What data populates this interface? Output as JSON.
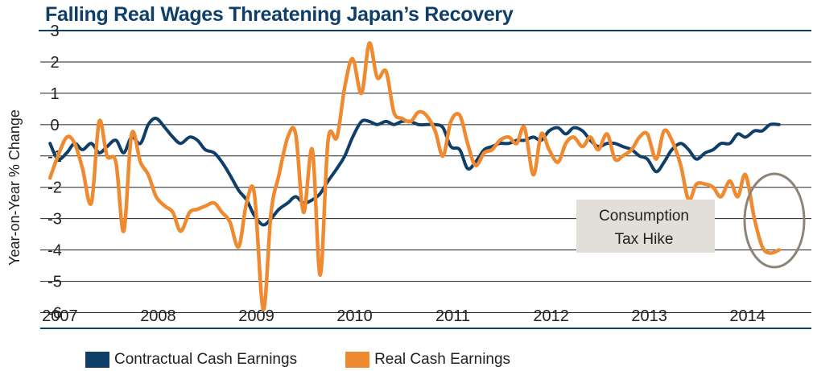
{
  "chart_data": {
    "type": "line",
    "title": "Falling Real Wages Threatening Japan’s Recovery",
    "xlabel": "",
    "ylabel": "Year-on-Year % Change",
    "ylim": [
      -6.5,
      3
    ],
    "yticks": [
      3,
      2,
      1,
      0,
      -1,
      -2,
      -3,
      -4,
      -5,
      -6
    ],
    "xlim": [
      2006.9,
      2014.75
    ],
    "xticks": [
      {
        "label": "2007",
        "x": 2007.0
      },
      {
        "label": "2008",
        "x": 2008.0
      },
      {
        "label": "2009",
        "x": 2009.0
      },
      {
        "label": "2010",
        "x": 2010.0
      },
      {
        "label": "2011",
        "x": 2011.0
      },
      {
        "label": "2012",
        "x": 2012.0
      },
      {
        "label": "2013",
        "x": 2013.0
      },
      {
        "label": "2014",
        "x": 2014.0
      }
    ],
    "grid": true,
    "legend_position": "bottom-left",
    "annotation": {
      "line1": "Consumption",
      "line2": "Tax Hike"
    },
    "colors": {
      "contractual": "#0f3f68",
      "real": "#f08a30",
      "grid": "#222222",
      "annotation_box": "#e1dfd8",
      "circle": "#8d8377",
      "title": "#0f3f68"
    },
    "series": [
      {
        "name": "Contractual Cash Earnings",
        "color": "#0f3f68",
        "x": [
          2007.0,
          2007.08,
          2007.17,
          2007.25,
          2007.33,
          2007.42,
          2007.5,
          2007.58,
          2007.67,
          2007.75,
          2007.83,
          2007.92,
          2008.0,
          2008.08,
          2008.17,
          2008.25,
          2008.33,
          2008.42,
          2008.5,
          2008.58,
          2008.67,
          2008.75,
          2008.83,
          2008.92,
          2009.0,
          2009.08,
          2009.17,
          2009.25,
          2009.33,
          2009.42,
          2009.5,
          2009.58,
          2009.67,
          2009.75,
          2009.83,
          2009.92,
          2010.0,
          2010.08,
          2010.17,
          2010.25,
          2010.33,
          2010.42,
          2010.5,
          2010.58,
          2010.67,
          2010.75,
          2010.83,
          2010.92,
          2011.0,
          2011.08,
          2011.17,
          2011.25,
          2011.33,
          2011.42,
          2011.5,
          2011.58,
          2011.67,
          2011.75,
          2011.83,
          2011.92,
          2012.0,
          2012.08,
          2012.17,
          2012.25,
          2012.33,
          2012.42,
          2012.5,
          2012.58,
          2012.67,
          2012.75,
          2012.83,
          2012.92,
          2013.0,
          2013.08,
          2013.17,
          2013.25,
          2013.33,
          2013.42,
          2013.5,
          2013.58,
          2013.67,
          2013.75,
          2013.83,
          2013.92,
          2014.0,
          2014.08,
          2014.17,
          2014.25,
          2014.33,
          2014.42
        ],
        "values": [
          -0.6,
          -1.1,
          -0.9,
          -0.6,
          -0.8,
          -0.6,
          -0.9,
          -0.7,
          -0.5,
          -0.9,
          -0.4,
          -0.6,
          0.0,
          0.2,
          -0.1,
          -0.4,
          -0.6,
          -0.4,
          -0.5,
          -0.8,
          -0.9,
          -1.2,
          -1.6,
          -2.1,
          -2.4,
          -2.9,
          -3.2,
          -3.0,
          -2.7,
          -2.5,
          -2.3,
          -2.5,
          -2.4,
          -2.2,
          -1.8,
          -1.4,
          -1.0,
          -0.4,
          0.1,
          0.1,
          0.0,
          0.1,
          0.0,
          0.1,
          0.1,
          0.0,
          0.0,
          0.0,
          -0.1,
          -0.7,
          -0.8,
          -1.4,
          -1.2,
          -0.8,
          -0.7,
          -0.6,
          -0.6,
          -0.5,
          -0.5,
          -0.4,
          -0.5,
          -0.2,
          -0.1,
          -0.3,
          -0.1,
          -0.2,
          -0.5,
          -0.7,
          -0.6,
          -0.6,
          -0.7,
          -0.8,
          -1.0,
          -1.1,
          -1.5,
          -1.2,
          -0.8,
          -0.6,
          -0.8,
          -1.1,
          -0.9,
          -0.8,
          -0.6,
          -0.6,
          -0.3,
          -0.4,
          -0.2,
          -0.2,
          0.0,
          0.0
        ]
      },
      {
        "name": "Real Cash Earnings",
        "color": "#f08a30",
        "x": [
          2007.0,
          2007.08,
          2007.17,
          2007.25,
          2007.33,
          2007.42,
          2007.5,
          2007.58,
          2007.67,
          2007.75,
          2007.83,
          2007.92,
          2008.0,
          2008.08,
          2008.17,
          2008.25,
          2008.33,
          2008.42,
          2008.5,
          2008.58,
          2008.67,
          2008.75,
          2008.83,
          2008.92,
          2009.0,
          2009.08,
          2009.17,
          2009.25,
          2009.33,
          2009.42,
          2009.5,
          2009.58,
          2009.67,
          2009.75,
          2009.83,
          2009.92,
          2010.0,
          2010.08,
          2010.17,
          2010.25,
          2010.33,
          2010.42,
          2010.5,
          2010.58,
          2010.67,
          2010.75,
          2010.83,
          2010.92,
          2011.0,
          2011.08,
          2011.17,
          2011.25,
          2011.33,
          2011.42,
          2011.5,
          2011.58,
          2011.67,
          2011.75,
          2011.83,
          2011.92,
          2012.0,
          2012.08,
          2012.17,
          2012.25,
          2012.33,
          2012.42,
          2012.5,
          2012.58,
          2012.67,
          2012.75,
          2012.83,
          2012.92,
          2013.0,
          2013.08,
          2013.17,
          2013.25,
          2013.33,
          2013.42,
          2013.5,
          2013.58,
          2013.67,
          2013.75,
          2013.83,
          2013.92,
          2014.0,
          2014.08,
          2014.17,
          2014.25,
          2014.33,
          2014.42
        ],
        "values": [
          -1.7,
          -1.0,
          -0.4,
          -0.6,
          -1.4,
          -2.5,
          0.1,
          -1.0,
          -1.2,
          -3.4,
          -0.3,
          -1.2,
          -1.6,
          -2.3,
          -2.6,
          -2.8,
          -3.4,
          -2.8,
          -2.7,
          -2.6,
          -2.5,
          -2.8,
          -3.1,
          -3.9,
          -2.5,
          -2.2,
          -5.9,
          -2.8,
          -1.6,
          -0.4,
          -0.3,
          -2.8,
          -0.8,
          -4.8,
          -0.5,
          -0.4,
          1.2,
          2.1,
          1.0,
          2.6,
          1.5,
          1.7,
          0.4,
          0.2,
          0.1,
          0.4,
          0.3,
          -0.2,
          -1.0,
          0.1,
          0.3,
          -0.6,
          -1.3,
          -0.9,
          -0.8,
          -0.5,
          -0.4,
          -0.6,
          -0.1,
          -1.6,
          -0.3,
          -0.8,
          -1.2,
          -0.6,
          -0.4,
          -0.7,
          -0.4,
          -0.8,
          -0.3,
          -1.1,
          -1.0,
          -0.8,
          -0.4,
          -0.3,
          -1.1,
          -0.2,
          -0.5,
          -1.3,
          -2.4,
          -1.9,
          -1.9,
          -2.0,
          -2.3,
          -1.8,
          -2.3,
          -1.6,
          -3.0,
          -3.9,
          -4.1,
          -4.0
        ]
      }
    ]
  }
}
